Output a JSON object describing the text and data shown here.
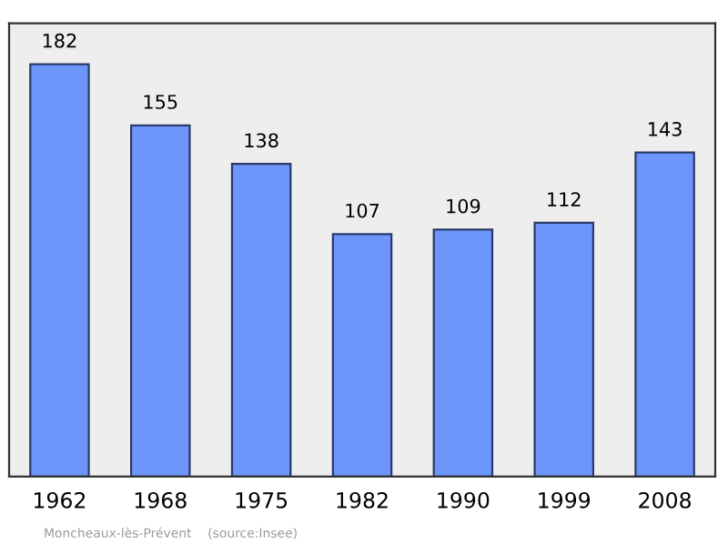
{
  "chart_data": {
    "type": "bar",
    "categories": [
      "1962",
      "1968",
      "1975",
      "1982",
      "1990",
      "1999",
      "2008"
    ],
    "values": [
      182,
      155,
      138,
      107,
      109,
      112,
      143
    ],
    "color": "#6e96fa",
    "ylim": [
      0,
      200
    ],
    "data_labels": true,
    "grid": false,
    "tick_labels": "x",
    "annotations": [
      "Moncheaux-lès-Prévent    (source:Insee)"
    ]
  }
}
